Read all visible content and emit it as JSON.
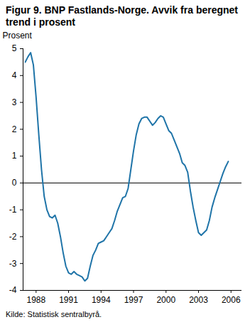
{
  "chart_data": {
    "type": "line",
    "title": "Figur 9. BNP Fastlands-Norge. Avvik fra beregnet trend i prosent",
    "y_label": "Prosent",
    "source": "Kilde: Statistisk sentralbyrå.",
    "x": [
      1987,
      1987.25,
      1987.5,
      1987.75,
      1988,
      1988.25,
      1988.5,
      1988.75,
      1989,
      1989.25,
      1989.5,
      1989.75,
      1990,
      1990.25,
      1990.5,
      1990.75,
      1991,
      1991.25,
      1991.5,
      1991.75,
      1992,
      1992.25,
      1992.5,
      1992.75,
      1993,
      1993.25,
      1993.5,
      1993.75,
      1994,
      1994.25,
      1994.5,
      1994.75,
      1995,
      1995.25,
      1995.5,
      1995.75,
      1996,
      1996.25,
      1996.5,
      1996.75,
      1997,
      1997.25,
      1997.5,
      1997.75,
      1998,
      1998.25,
      1998.5,
      1998.75,
      1999,
      1999.25,
      1999.5,
      1999.75,
      2000,
      2000.25,
      2000.5,
      2000.75,
      2001,
      2001.25,
      2001.5,
      2001.75,
      2002,
      2002.25,
      2002.5,
      2002.75,
      2003,
      2003.25,
      2003.5,
      2003.75,
      2004,
      2004.25,
      2004.5,
      2004.75,
      2005,
      2005.25,
      2005.5,
      2005.75
    ],
    "values": [
      4.5,
      4.7,
      4.85,
      4.4,
      3.2,
      1.8,
      0.5,
      -0.5,
      -1.0,
      -1.25,
      -1.3,
      -1.2,
      -1.5,
      -2.0,
      -2.6,
      -3.1,
      -3.35,
      -3.4,
      -3.3,
      -3.4,
      -3.45,
      -3.5,
      -3.65,
      -3.55,
      -3.1,
      -2.7,
      -2.5,
      -2.25,
      -2.2,
      -2.15,
      -2.0,
      -1.85,
      -1.7,
      -1.4,
      -1.05,
      -0.8,
      -0.55,
      -0.5,
      -0.2,
      0.5,
      1.2,
      1.8,
      2.2,
      2.4,
      2.45,
      2.45,
      2.3,
      2.15,
      2.25,
      2.4,
      2.5,
      2.45,
      2.2,
      1.95,
      1.85,
      1.6,
      1.35,
      1.1,
      0.75,
      0.65,
      0.4,
      -0.3,
      -0.9,
      -1.4,
      -1.85,
      -1.95,
      -1.85,
      -1.75,
      -1.4,
      -0.9,
      -0.55,
      -0.25,
      0.05,
      0.35,
      0.6,
      0.8
    ],
    "color": "#1f74a8",
    "xlim": [
      1986.8,
      2007
    ],
    "xticks": [
      1988,
      1991,
      1994,
      1997,
      2000,
      2003,
      2006
    ],
    "ylim": [
      -4,
      5
    ],
    "yticks": [
      -4,
      -3,
      -2,
      -1,
      0,
      1,
      2,
      3,
      4,
      5
    ],
    "grid": false
  }
}
